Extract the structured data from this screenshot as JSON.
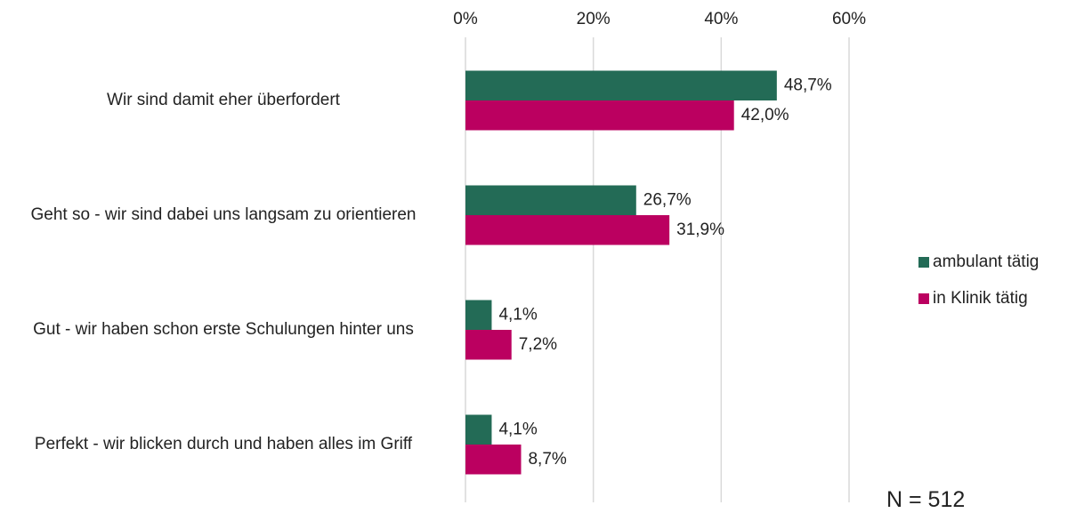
{
  "chart_data": {
    "type": "barh",
    "categories": [
      "Wir sind damit eher überfordert",
      "Geht so - wir sind dabei uns langsam zu orientieren",
      "Gut - wir haben schon erste Schulungen hinter uns",
      "Perfekt - wir blicken durch und haben alles im Griff"
    ],
    "series": [
      {
        "name": "ambulant tätig",
        "color": "#236b56",
        "values": [
          48.7,
          26.7,
          4.1,
          4.1
        ],
        "value_labels": [
          "48,7%",
          "26,7%",
          "4,1%",
          "4,1%"
        ]
      },
      {
        "name": "in Klinik tätig",
        "color": "#bb0060",
        "values": [
          42.0,
          31.9,
          7.2,
          8.7
        ],
        "value_labels": [
          "42,0%",
          "31,9%",
          "7,2%",
          "8,7%"
        ]
      }
    ],
    "xlim": [
      0,
      60
    ],
    "xticks": [
      {
        "value": 0,
        "label": "0%"
      },
      {
        "value": 20,
        "label": "20%"
      },
      {
        "value": 40,
        "label": "40%"
      },
      {
        "value": 60,
        "label": "60%"
      }
    ],
    "grid": true,
    "legend": "right",
    "annotation": "N = 512"
  }
}
